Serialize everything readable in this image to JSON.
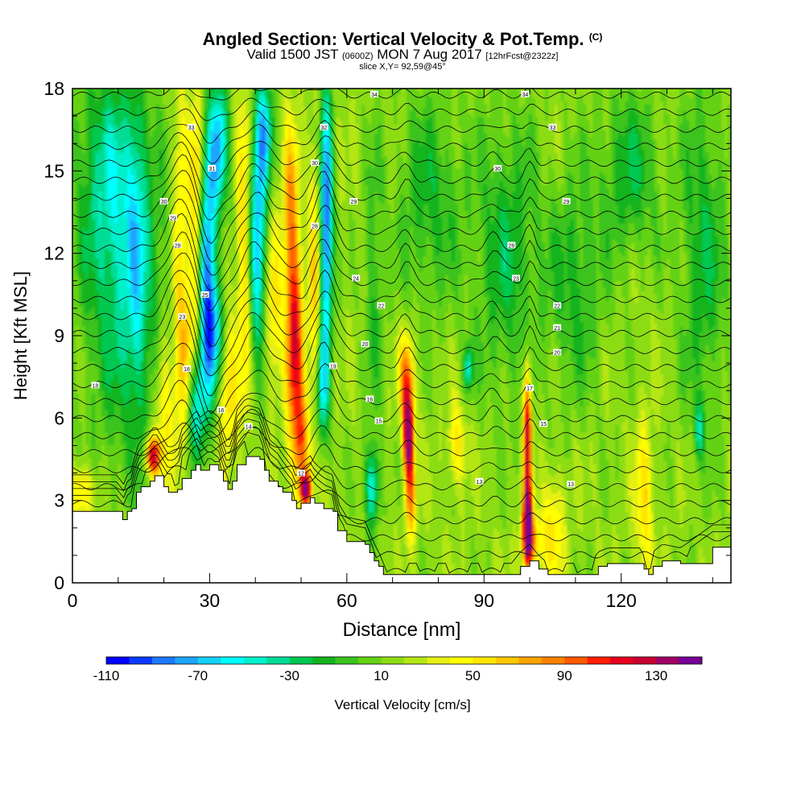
{
  "header": {
    "title": "Angled Section: Vertical Velocity & Pot.Temp.",
    "title_unit": "(C)",
    "subtitle_main": "Valid 1500 JST",
    "subtitle_zulu": "(0600Z)",
    "subtitle_date": "MON 7 Aug 2017",
    "subtitle_fcst": "[12hrFcst@2322z]",
    "slice_info": "slice X,Y= 92,59@45°"
  },
  "chart_data": {
    "type": "heatmap",
    "title": "Angled Section: Vertical Velocity & Pot.Temp.",
    "xlabel": "Distance [nm]",
    "ylabel": "Height [Kft MSL]",
    "xlim": [
      0,
      144
    ],
    "ylim": [
      0,
      18
    ],
    "x_ticks": [
      {
        "value": 0,
        "label": "0"
      },
      {
        "value": 30,
        "label": "30"
      },
      {
        "value": 60,
        "label": "60"
      },
      {
        "value": 90,
        "label": "90"
      },
      {
        "value": 120,
        "label": "120"
      }
    ],
    "y_ticks": [
      {
        "value": 0,
        "label": "0"
      },
      {
        "value": 3,
        "label": "3"
      },
      {
        "value": 6,
        "label": "6"
      },
      {
        "value": 9,
        "label": "9"
      },
      {
        "value": 12,
        "label": "12"
      },
      {
        "value": 15,
        "label": "15"
      },
      {
        "value": 18,
        "label": "18"
      }
    ],
    "colorbar": {
      "label": "Vertical Velocity [cm/s]",
      "range": [
        -110,
        150
      ],
      "step": 10,
      "tick_labels": [
        "-110",
        "-70",
        "-30",
        "10",
        "50",
        "90",
        "130"
      ],
      "colors": [
        "#0000ff",
        "#0a3cff",
        "#1e78ff",
        "#1ea5ff",
        "#14d2ff",
        "#00ffff",
        "#00f0cc",
        "#00dc96",
        "#00c850",
        "#14b41e",
        "#3cc31e",
        "#64d214",
        "#8cdc14",
        "#b4e614",
        "#e6f014",
        "#ffff00",
        "#ffe600",
        "#ffc800",
        "#ffa500",
        "#ff8200",
        "#ff5a00",
        "#ff1e00",
        "#e6001e",
        "#c80032",
        "#a00064",
        "#780096"
      ]
    },
    "terrain_profile": [
      [
        0,
        2.6
      ],
      [
        10,
        2.6
      ],
      [
        11,
        2.3
      ],
      [
        12,
        2.6
      ],
      [
        13,
        2.7
      ],
      [
        14,
        3.3
      ],
      [
        15,
        3.5
      ],
      [
        17,
        3.7
      ],
      [
        18,
        3.9
      ],
      [
        20,
        3.5
      ],
      [
        21,
        3.3
      ],
      [
        23,
        3.4
      ],
      [
        24,
        3.8
      ],
      [
        26,
        4.1
      ],
      [
        27,
        4.3
      ],
      [
        28,
        4.1
      ],
      [
        30,
        4.3
      ],
      [
        32,
        4.1
      ],
      [
        33,
        3.7
      ],
      [
        34,
        3.4
      ],
      [
        35,
        3.7
      ],
      [
        36,
        4.3
      ],
      [
        38,
        4.6
      ],
      [
        41,
        4.5
      ],
      [
        42,
        4.1
      ],
      [
        43,
        3.7
      ],
      [
        45,
        3.5
      ],
      [
        46,
        3.3
      ],
      [
        48,
        3.0
      ],
      [
        49,
        2.7
      ],
      [
        50,
        2.9
      ],
      [
        52,
        3.1
      ],
      [
        53,
        2.9
      ],
      [
        55,
        2.7
      ],
      [
        57,
        2.6
      ],
      [
        58,
        1.9
      ],
      [
        60,
        1.5
      ],
      [
        64,
        1.4
      ],
      [
        65,
        1.1
      ],
      [
        66,
        0.8
      ],
      [
        67,
        0.6
      ],
      [
        68,
        0.3
      ],
      [
        72,
        0.3
      ],
      [
        80,
        0.3
      ],
      [
        91,
        0.3
      ],
      [
        96,
        0.3
      ],
      [
        98,
        0.6
      ],
      [
        100,
        0.8
      ],
      [
        102,
        0.5
      ],
      [
        104,
        0.3
      ],
      [
        107,
        0.3
      ],
      [
        113,
        0.3
      ],
      [
        115,
        0.6
      ],
      [
        117,
        0.7
      ],
      [
        124,
        0.7
      ],
      [
        125,
        0.5
      ],
      [
        126,
        0.3
      ],
      [
        127,
        0.6
      ],
      [
        129,
        0.8
      ],
      [
        133,
        0.7
      ],
      [
        140,
        1.3
      ],
      [
        144,
        1.3
      ]
    ],
    "velocity_features": [
      {
        "x": 12,
        "y": 10.5,
        "sx": 9,
        "sy": 6,
        "v": -45
      },
      {
        "x": 8,
        "y": 15,
        "sx": 7,
        "sy": 4,
        "v": -40
      },
      {
        "x": 95,
        "y": 12,
        "sx": 7,
        "sy": 5,
        "v": -35
      },
      {
        "x": 122,
        "y": 15,
        "sx": 6,
        "sy": 3,
        "v": -35
      },
      {
        "x": 110,
        "y": 11,
        "sx": 6,
        "sy": 4,
        "v": -30
      },
      {
        "x": 138,
        "y": 12,
        "sx": 5,
        "sy": 6,
        "v": -35
      },
      {
        "x": 78,
        "y": 14,
        "sx": 7,
        "sy": 4,
        "v": -30
      },
      {
        "x": 17.5,
        "y": 4.6,
        "sx": 1.6,
        "sy": 0.7,
        "v": 110
      },
      {
        "x": 20,
        "y": 6.5,
        "sx": 2.2,
        "sy": 3,
        "v": 45
      },
      {
        "x": 23.5,
        "y": 11,
        "sx": 1.6,
        "sy": 7,
        "v": 45
      },
      {
        "x": 27,
        "y": 14,
        "sx": 1.6,
        "sy": 4,
        "v": 50
      },
      {
        "x": 25.5,
        "y": 8.5,
        "sx": 1.8,
        "sy": 3,
        "v": 40
      },
      {
        "x": 29.5,
        "y": 11.5,
        "sx": 1.8,
        "sy": 4.5,
        "v": -100
      },
      {
        "x": 32,
        "y": 16,
        "sx": 2,
        "sy": 2.5,
        "v": -80
      },
      {
        "x": 27,
        "y": 6.5,
        "sx": 2,
        "sy": 2,
        "v": -70
      },
      {
        "x": 31,
        "y": 9,
        "sx": 2.2,
        "sy": 2,
        "v": -60
      },
      {
        "x": 34,
        "y": 7,
        "sx": 2,
        "sy": 2.5,
        "v": 45
      },
      {
        "x": 37.5,
        "y": 12,
        "sx": 1.6,
        "sy": 6,
        "v": 45
      },
      {
        "x": 40.5,
        "y": 12.5,
        "sx": 1.8,
        "sy": 4,
        "v": -90
      },
      {
        "x": 42,
        "y": 16.5,
        "sx": 1.8,
        "sy": 2,
        "v": -70
      },
      {
        "x": 44,
        "y": 10,
        "sx": 1.8,
        "sy": 3,
        "v": 40
      },
      {
        "x": 48.5,
        "y": 9,
        "sx": 1.8,
        "sy": 4,
        "v": 100
      },
      {
        "x": 50,
        "y": 5,
        "sx": 1.6,
        "sy": 2,
        "v": 70
      },
      {
        "x": 51,
        "y": 3.4,
        "sx": 1.2,
        "sy": 0.6,
        "v": 110
      },
      {
        "x": 47.5,
        "y": 14,
        "sx": 1.6,
        "sy": 3,
        "v": 50
      },
      {
        "x": 55.5,
        "y": 13,
        "sx": 1.4,
        "sy": 5,
        "v": -110
      },
      {
        "x": 54.5,
        "y": 7,
        "sx": 1.3,
        "sy": 2,
        "v": -60
      },
      {
        "x": 53,
        "y": 11,
        "sx": 1.4,
        "sy": 5,
        "v": 45
      },
      {
        "x": 65.5,
        "y": 3.5,
        "sx": 1.5,
        "sy": 1.5,
        "v": -70
      },
      {
        "x": 73.5,
        "y": 5.3,
        "sx": 1.2,
        "sy": 1.6,
        "v": 130
      },
      {
        "x": 73,
        "y": 7.5,
        "sx": 1.6,
        "sy": 1.5,
        "v": 70
      },
      {
        "x": 74,
        "y": 3,
        "sx": 1.2,
        "sy": 1.5,
        "v": 60
      },
      {
        "x": 86.5,
        "y": 7.8,
        "sx": 1,
        "sy": 0.8,
        "v": -60
      },
      {
        "x": 84,
        "y": 5,
        "sx": 2,
        "sy": 1.5,
        "v": 40
      },
      {
        "x": 99.5,
        "y": 2,
        "sx": 1,
        "sy": 1.5,
        "v": 140
      },
      {
        "x": 99.5,
        "y": 5.5,
        "sx": 0.9,
        "sy": 2.5,
        "v": 110
      },
      {
        "x": 100.5,
        "y": 1.5,
        "sx": 2,
        "sy": 1,
        "v": 50
      },
      {
        "x": 105,
        "y": 2,
        "sx": 2.5,
        "sy": 2,
        "v": 40
      },
      {
        "x": 125,
        "y": 3,
        "sx": 2,
        "sy": 3,
        "v": 40
      },
      {
        "x": 137,
        "y": 5.5,
        "sx": 1,
        "sy": 1,
        "v": -50
      },
      {
        "x": 2,
        "y": 3.3,
        "sx": 3,
        "sy": 1,
        "v": 45
      },
      {
        "x": 14,
        "y": 12,
        "sx": 2,
        "sy": 6,
        "v": -30
      },
      {
        "x": 66,
        "y": 11,
        "sx": 2,
        "sy": 5,
        "v": -25
      }
    ],
    "theta_labels": [
      {
        "x": 66,
        "y": 17.8,
        "text": "34"
      },
      {
        "x": 99,
        "y": 17.8,
        "text": "34"
      },
      {
        "x": 26,
        "y": 16.6,
        "text": "33"
      },
      {
        "x": 55,
        "y": 16.6,
        "text": "32"
      },
      {
        "x": 105,
        "y": 16.6,
        "text": "33"
      },
      {
        "x": 30.5,
        "y": 15.1,
        "text": "31"
      },
      {
        "x": 53,
        "y": 15.3,
        "text": "30"
      },
      {
        "x": 93,
        "y": 15.1,
        "text": "30"
      },
      {
        "x": 20,
        "y": 13.9,
        "text": "30"
      },
      {
        "x": 61.5,
        "y": 13.9,
        "text": "29"
      },
      {
        "x": 108,
        "y": 13.9,
        "text": "29"
      },
      {
        "x": 22,
        "y": 13.3,
        "text": "29"
      },
      {
        "x": 53,
        "y": 13,
        "text": "28"
      },
      {
        "x": 23,
        "y": 12.3,
        "text": "28"
      },
      {
        "x": 96,
        "y": 12.3,
        "text": "26"
      },
      {
        "x": 62,
        "y": 11.1,
        "text": "24"
      },
      {
        "x": 97,
        "y": 11.1,
        "text": "23"
      },
      {
        "x": 29,
        "y": 10.5,
        "text": "25"
      },
      {
        "x": 67.5,
        "y": 10.1,
        "text": "22"
      },
      {
        "x": 106,
        "y": 10.1,
        "text": "22"
      },
      {
        "x": 24,
        "y": 9.7,
        "text": "23"
      },
      {
        "x": 106,
        "y": 9.3,
        "text": "21"
      },
      {
        "x": 64,
        "y": 8.7,
        "text": "20"
      },
      {
        "x": 106,
        "y": 8.4,
        "text": "20"
      },
      {
        "x": 57,
        "y": 7.9,
        "text": "19"
      },
      {
        "x": 25,
        "y": 7.8,
        "text": "18"
      },
      {
        "x": 5,
        "y": 7.2,
        "text": "18"
      },
      {
        "x": 100,
        "y": 7.1,
        "text": "17"
      },
      {
        "x": 65,
        "y": 6.7,
        "text": "16"
      },
      {
        "x": 32.5,
        "y": 6.3,
        "text": "16"
      },
      {
        "x": 67,
        "y": 5.9,
        "text": "15"
      },
      {
        "x": 103,
        "y": 5.8,
        "text": "15"
      },
      {
        "x": 38.5,
        "y": 5.7,
        "text": "14"
      },
      {
        "x": 50,
        "y": 4,
        "text": "12"
      },
      {
        "x": 89,
        "y": 3.7,
        "text": "13"
      },
      {
        "x": 109,
        "y": 3.6,
        "text": "13"
      }
    ]
  }
}
